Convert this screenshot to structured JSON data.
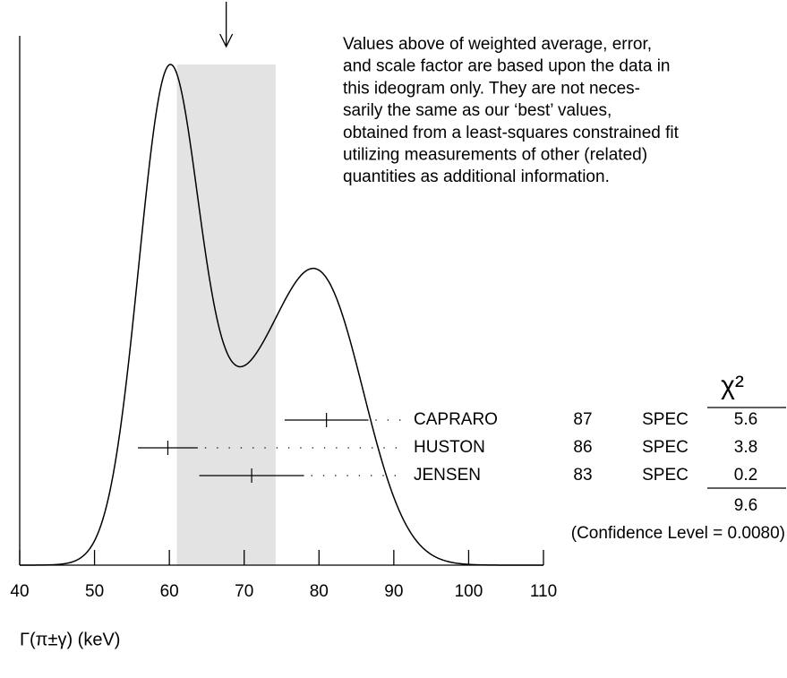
{
  "chart_data": {
    "type": "ideogram",
    "xlabel": "Γ(π±γ) (keV)",
    "xlim": [
      40,
      110
    ],
    "xticks": [
      40,
      50,
      60,
      70,
      80,
      90,
      100,
      110
    ],
    "average": {
      "value": 67.6,
      "error": 6.6
    },
    "note": [
      "Values above of weighted average, error,",
      "and scale factor are based upon the data in",
      "this ideogram only.  They are not neces-",
      "sarily the same as our ‘best’ values,",
      "obtained from a least-squares constrained fit",
      "utilizing measurements of other (related)",
      "quantities as additional information."
    ],
    "chi2_header": "χ²",
    "measurements": [
      {
        "name": "CAPRARO",
        "year": 87,
        "technique": "SPEC",
        "value": 81,
        "error": 5.6,
        "chi2": 5.6
      },
      {
        "name": "HUSTON",
        "year": 86,
        "technique": "SPEC",
        "value": 59.8,
        "error": 4,
        "chi2": 3.8
      },
      {
        "name": "JENSEN",
        "year": 83,
        "technique": "SPEC",
        "value": 71,
        "error": 7,
        "chi2": 0.2
      }
    ],
    "chi2_total": 9.6,
    "confidence_level": "(Confidence Level = 0.0080)"
  }
}
